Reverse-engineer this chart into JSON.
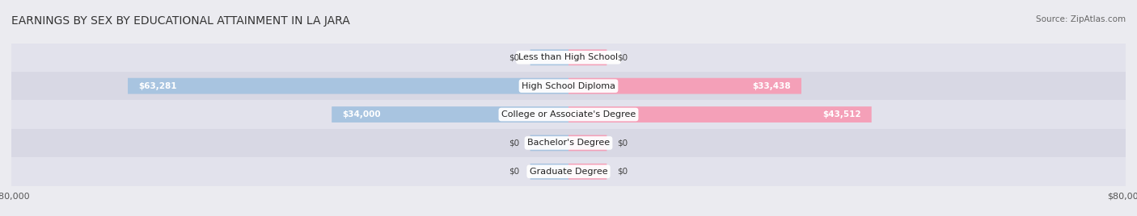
{
  "title": "EARNINGS BY SEX BY EDUCATIONAL ATTAINMENT IN LA JARA",
  "source": "Source: ZipAtlas.com",
  "categories": [
    "Less than High School",
    "High School Diploma",
    "College or Associate's Degree",
    "Bachelor's Degree",
    "Graduate Degree"
  ],
  "male_values": [
    0,
    63281,
    34000,
    0,
    0
  ],
  "female_values": [
    0,
    33438,
    43512,
    0,
    0
  ],
  "male_color": "#a8c4e0",
  "female_color": "#f4a0b8",
  "bar_height": 0.55,
  "xlim": 80000,
  "background_color": "#ebebf0",
  "row_bg_even": "#e2e2ec",
  "row_bg_odd": "#d8d8e4",
  "title_fontsize": 10,
  "source_fontsize": 7.5,
  "label_fontsize": 8,
  "legend_male_color": "#a8c4e0",
  "legend_female_color": "#f4a0b8",
  "axis_label_color": "#555555",
  "category_fontsize": 8,
  "value_fontsize": 7.5
}
